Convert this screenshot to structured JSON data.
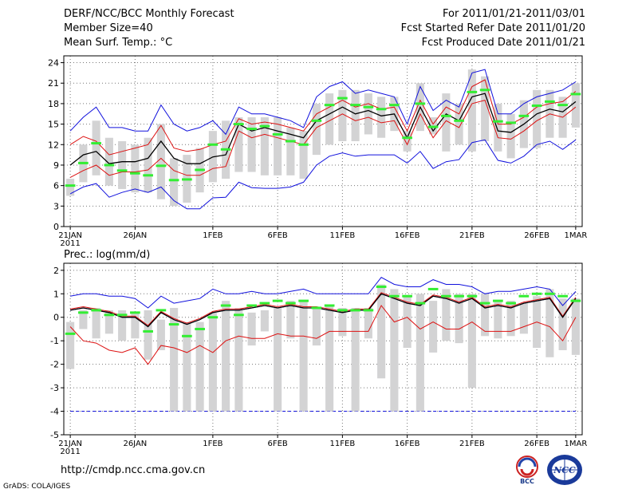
{
  "header": {
    "title": "DERF/NCC/BCC Monthly Forecast",
    "member_size": "Member Size=40",
    "variable": "Mean Surf. Temp.: °C",
    "period": "For 2011/01/21-2011/03/01",
    "started": "Fcst Started Refer Date 2011/01/20",
    "produced": "Fcst Produced Date 2011/01/21"
  },
  "footer": {
    "url": "http://cmdp.ncc.cma.gov.cn",
    "credit": "GrADS: COLA/IGES",
    "logo_bcc_text": "BCC",
    "logo_ncc_text": "NCC"
  },
  "colors": {
    "box": "#d3d3d4",
    "median": "#33ee33",
    "mean": "#000000",
    "spread": "#dd1111",
    "extreme": "#1111dd"
  },
  "chart_data": [
    {
      "type": "box",
      "ylabel": "Mean Surf. Temp.: °C",
      "ylim": [
        0,
        25
      ],
      "yticks": [
        0,
        3,
        6,
        9,
        12,
        15,
        18,
        21,
        24
      ],
      "x_days": 40,
      "xticks": [
        {
          "day": 0,
          "label": "21JAN",
          "sub": "2011"
        },
        {
          "day": 5,
          "label": "26JAN"
        },
        {
          "day": 11,
          "label": "1FEB"
        },
        {
          "day": 16,
          "label": "6FEB"
        },
        {
          "day": 21,
          "label": "11FEB"
        },
        {
          "day": 26,
          "label": "16FEB"
        },
        {
          "day": 31,
          "label": "21FEB"
        },
        {
          "day": 36,
          "label": "26FEB"
        },
        {
          "day": 39,
          "label": "1MAR"
        }
      ],
      "box_low": [
        4.5,
        6.5,
        7.5,
        6,
        5.5,
        5,
        5,
        4,
        3,
        3.5,
        5,
        6.5,
        7,
        8,
        8,
        7.5,
        7.5,
        7.5,
        7,
        10.5,
        12,
        12.5,
        12.5,
        13.5,
        13,
        14,
        11,
        14,
        13.5,
        11,
        12,
        11,
        12.5,
        11,
        10,
        11.5,
        11.5,
        13,
        13,
        14.5
      ],
      "box_high": [
        7,
        12,
        15.5,
        13,
        12.5,
        12,
        13,
        15,
        10,
        10.5,
        11.5,
        14,
        15.5,
        16,
        16,
        16,
        16,
        14.5,
        14,
        18,
        19.5,
        20,
        20,
        19.5,
        19,
        19,
        14,
        21,
        16,
        19.5,
        18,
        23,
        22,
        18,
        16.5,
        18.5,
        20,
        20,
        19,
        21
      ],
      "median": [
        6,
        9.3,
        12.2,
        9,
        8.2,
        7.8,
        7.5,
        8.9,
        6.8,
        6.9,
        8.3,
        12,
        11.3,
        15,
        14.3,
        14.7,
        13.5,
        12.5,
        12,
        15.5,
        17.8,
        18.8,
        17.8,
        17.5,
        17.2,
        17.8,
        13,
        18,
        14.6,
        16.2,
        15.5,
        19.7,
        20,
        15.4,
        15.2,
        16.2,
        17.7,
        18.3,
        17.8,
        19.4
      ],
      "mean": [
        9,
        10.5,
        11,
        9.2,
        9.5,
        9.5,
        10,
        12.5,
        10,
        9.2,
        9.2,
        10.2,
        10.5,
        15,
        14,
        14.5,
        14,
        13.5,
        13,
        15.5,
        16.5,
        17.5,
        16.5,
        17,
        16.2,
        16.5,
        13,
        17.5,
        14,
        16.5,
        15.5,
        19,
        19.5,
        14,
        13.8,
        15,
        16.5,
        17.2,
        16.8,
        18.3
      ],
      "upper": [
        12,
        13.2,
        12.5,
        10.5,
        11,
        11.5,
        12,
        14.8,
        11.5,
        11,
        11.3,
        12,
        12.5,
        15.8,
        15,
        15.3,
        15,
        14.5,
        14,
        16.5,
        17.5,
        18.5,
        17.5,
        18,
        17.2,
        17.5,
        14,
        18.5,
        15,
        17.5,
        16.5,
        20.5,
        21.5,
        15,
        15,
        16,
        17.5,
        18,
        18.3,
        19.8
      ],
      "lower": [
        7.2,
        8.2,
        9,
        7.5,
        8,
        8,
        8.3,
        10,
        8.2,
        7.5,
        7.5,
        8.5,
        8.8,
        14,
        13,
        13.5,
        13,
        12.5,
        12,
        14.5,
        15.5,
        16.5,
        15.5,
        16,
        15.2,
        15.5,
        12,
        16.5,
        13,
        15.5,
        14.5,
        18,
        18.5,
        13,
        12.8,
        14,
        15.5,
        16.5,
        16,
        17.5
      ],
      "max": [
        14,
        16,
        17.5,
        14.5,
        14.5,
        14,
        14,
        17.8,
        15,
        14,
        14.5,
        15.5,
        13.5,
        17.5,
        16.5,
        16.5,
        16,
        15.5,
        14.5,
        19,
        20.5,
        21.2,
        19.5,
        20,
        19.5,
        19,
        15,
        20.5,
        17,
        18.5,
        17.5,
        22.5,
        23,
        16.5,
        16.5,
        18,
        19,
        19.5,
        20,
        21.2
      ],
      "min": [
        4.8,
        5.8,
        6.3,
        4.3,
        5,
        5.5,
        5,
        5.8,
        3.8,
        2.6,
        2.6,
        4.2,
        4.3,
        6.5,
        5.7,
        5.6,
        5.6,
        5.8,
        6.5,
        9,
        10.3,
        10.8,
        10.3,
        10.5,
        10.5,
        10.5,
        9.3,
        11,
        8.5,
        9.5,
        9.8,
        12.3,
        12.7,
        9.7,
        9.3,
        10.3,
        12,
        12.5,
        11.3,
        12.7
      ]
    },
    {
      "type": "box",
      "ylabel": "Prec.: log(mm/d)",
      "ylim": [
        -5,
        2.3
      ],
      "yticks": [
        -5,
        -4,
        -3,
        -2,
        -1,
        0,
        1,
        2
      ],
      "x_days": 40,
      "xticks": [
        {
          "day": 0,
          "label": "21JAN",
          "sub": "2011"
        },
        {
          "day": 5,
          "label": "26JAN"
        },
        {
          "day": 11,
          "label": "1FEB"
        },
        {
          "day": 16,
          "label": "6FEB"
        },
        {
          "day": 21,
          "label": "11FEB"
        },
        {
          "day": 26,
          "label": "16FEB"
        },
        {
          "day": 31,
          "label": "21FEB"
        },
        {
          "day": 36,
          "label": "26FEB"
        },
        {
          "day": 39,
          "label": "1MAR"
        }
      ],
      "reference_line": -4,
      "box_low": [
        -2.2,
        -0.5,
        -0.9,
        -0.7,
        -1,
        -0.9,
        -1.8,
        -1.4,
        -4,
        -4,
        -4,
        -4,
        -4,
        -4,
        -1.2,
        -0.6,
        -4,
        -0.9,
        -4,
        -1.2,
        -4,
        -0.8,
        -4,
        -0.9,
        -2.6,
        -4,
        -1.3,
        -4,
        -1.5,
        -1,
        -1.1,
        -3,
        -0.8,
        -0.9,
        -0.8,
        -0.7,
        -1.3,
        -1.7,
        -1.4,
        -1.6
      ],
      "box_high": [
        -0.2,
        0.3,
        0.4,
        0.3,
        0.3,
        0.2,
        0.3,
        -0.1,
        0.4,
        -0.2,
        -0.2,
        0.2,
        0.7,
        0.4,
        0.2,
        0.3,
        0.4,
        0.7,
        0.7,
        0.4,
        0.5,
        0.4,
        0.4,
        0.4,
        1.4,
        1.2,
        0.9,
        1,
        0.7,
        1.2,
        1,
        1,
        1,
        0.7,
        0.7,
        0.6,
        0.9,
        1.2,
        0.8,
        0.8
      ],
      "median": [
        -0.7,
        0.2,
        0.3,
        0.1,
        0.1,
        0.2,
        -0.6,
        0.3,
        -0.3,
        -0.8,
        -0.5,
        0,
        0.5,
        0.1,
        0.5,
        0.6,
        0.7,
        0.6,
        0.7,
        0.4,
        0.5,
        0.3,
        0.3,
        0.3,
        1.3,
        0.9,
        0.9,
        0.6,
        1.2,
        0.9,
        0.9,
        0.9,
        0.6,
        0.7,
        0.6,
        0.9,
        1,
        1,
        0.9,
        0.7
      ],
      "mean": [
        0.3,
        0.4,
        0.3,
        0.2,
        0,
        0,
        -0.4,
        0.2,
        -0.1,
        -0.3,
        -0.1,
        0.2,
        0.3,
        0.3,
        0.4,
        0.5,
        0.4,
        0.5,
        0.4,
        0.4,
        0.3,
        0.2,
        0.3,
        0.3,
        1,
        0.8,
        0.6,
        0.5,
        0.9,
        0.8,
        0.6,
        0.8,
        0.4,
        0.5,
        0.4,
        0.6,
        0.7,
        0.8,
        0,
        0.8
      ],
      "upper": [
        0.35,
        0.45,
        0.35,
        0.25,
        0.05,
        0.05,
        -0.35,
        0.25,
        -0.05,
        -0.25,
        -0.05,
        0.25,
        0.35,
        0.35,
        0.45,
        0.55,
        0.45,
        0.55,
        0.45,
        0.45,
        0.35,
        0.25,
        0.35,
        0.35,
        1.05,
        0.85,
        0.65,
        0.55,
        0.95,
        0.85,
        0.65,
        0.85,
        0.45,
        0.55,
        0.45,
        0.65,
        0.75,
        0.85,
        0.05,
        0.85
      ],
      "lower": [
        -0.4,
        -1,
        -1.1,
        -1.4,
        -1.5,
        -1.3,
        -2,
        -1.2,
        -1.3,
        -1.5,
        -1.2,
        -1.5,
        -1,
        -0.8,
        -0.9,
        -0.9,
        -0.7,
        -0.8,
        -0.8,
        -0.9,
        -0.6,
        -0.6,
        -0.6,
        -0.6,
        0.5,
        -0.2,
        0,
        -0.5,
        -0.2,
        -0.5,
        -0.5,
        -0.2,
        -0.6,
        -0.6,
        -0.6,
        -0.4,
        -0.2,
        -0.4,
        -1,
        0
      ],
      "max": [
        0.9,
        1,
        1,
        0.9,
        0.9,
        0.8,
        0.4,
        0.9,
        0.6,
        0.7,
        0.8,
        1.2,
        1,
        1,
        1.1,
        1,
        1,
        1.1,
        1.2,
        1,
        1,
        1,
        1,
        1,
        1.7,
        1.4,
        1.3,
        1.3,
        1.6,
        1.4,
        1.4,
        1.3,
        1,
        1.1,
        1.1,
        1.2,
        1.3,
        1.2,
        0.5,
        1.1
      ],
      "min": [
        0.3,
        0.4,
        0.3,
        0.2,
        0,
        0,
        -0.4,
        0.2,
        -0.1,
        -0.3,
        -0.1,
        0.2,
        0.3,
        0.3,
        0.4,
        0.5,
        0.4,
        0.5,
        0.4,
        0.4,
        0.3,
        0.2,
        0.3,
        0.3,
        1,
        0.8,
        0.6,
        0.5,
        0.9,
        0.8,
        0.6,
        0.8,
        0.4,
        0.5,
        0.4,
        0.6,
        0.7,
        0.8,
        0,
        0.8
      ]
    }
  ]
}
